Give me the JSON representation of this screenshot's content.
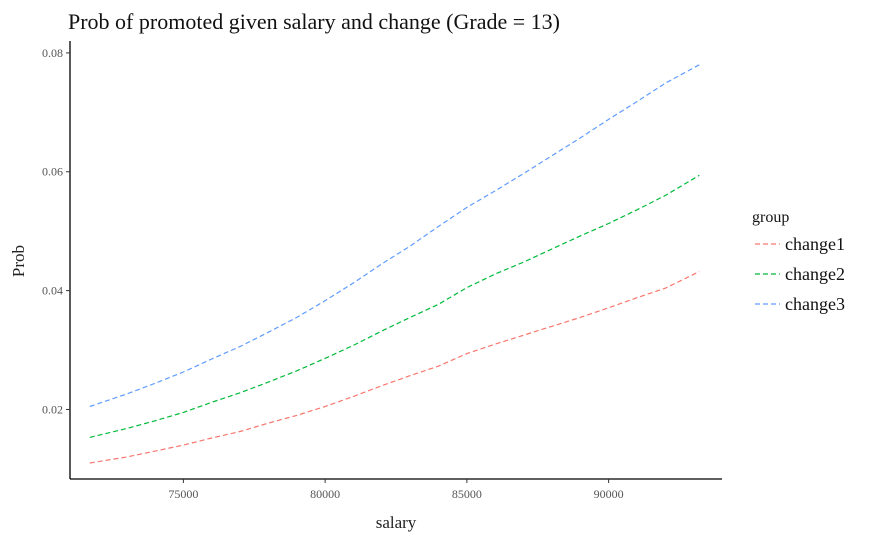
{
  "chart_data": {
    "type": "line",
    "title": "Prob of promoted given salary and change (Grade = 13)",
    "xlabel": "salary",
    "ylabel": "Prob",
    "xlim": [
      71000,
      94000
    ],
    "ylim": [
      0.0083,
      0.082
    ],
    "x_ticks": [
      75000,
      80000,
      85000,
      90000
    ],
    "x_tick_labels": [
      "75000",
      "80000",
      "85000",
      "90000"
    ],
    "y_ticks": [
      0.02,
      0.04,
      0.06,
      0.08
    ],
    "y_tick_labels": [
      "0.02",
      "0.04",
      "0.06",
      "0.08"
    ],
    "grid": false,
    "legend": {
      "title": "group",
      "position": "right"
    },
    "x": [
      71700,
      73000,
      74000,
      75000,
      76000,
      77000,
      78000,
      79000,
      80000,
      81000,
      82000,
      83000,
      84000,
      85000,
      86000,
      87000,
      88000,
      89000,
      90000,
      91000,
      92000,
      93200
    ],
    "series": [
      {
        "name": "change1",
        "color": "#F8766D",
        "values": [
          0.011,
          0.012,
          0.013,
          0.014,
          0.0152,
          0.0163,
          0.0177,
          0.019,
          0.0205,
          0.0222,
          0.024,
          0.0257,
          0.0273,
          0.0294,
          0.031,
          0.0325,
          0.034,
          0.0355,
          0.0371,
          0.0388,
          0.0404,
          0.0432
        ]
      },
      {
        "name": "change2",
        "color": "#00BA38",
        "values": [
          0.0153,
          0.0168,
          0.0181,
          0.0195,
          0.0212,
          0.0228,
          0.0246,
          0.0265,
          0.0286,
          0.0308,
          0.0332,
          0.0355,
          0.0377,
          0.0405,
          0.0428,
          0.0448,
          0.047,
          0.0492,
          0.0513,
          0.0536,
          0.056,
          0.0594
        ]
      },
      {
        "name": "change3",
        "color": "#619CFF",
        "values": [
          0.0205,
          0.0226,
          0.0244,
          0.0263,
          0.0285,
          0.0306,
          0.033,
          0.0355,
          0.0383,
          0.0413,
          0.0445,
          0.0475,
          0.0508,
          0.054,
          0.0568,
          0.0597,
          0.0627,
          0.0657,
          0.0688,
          0.0718,
          0.0749,
          0.078
        ]
      }
    ]
  }
}
